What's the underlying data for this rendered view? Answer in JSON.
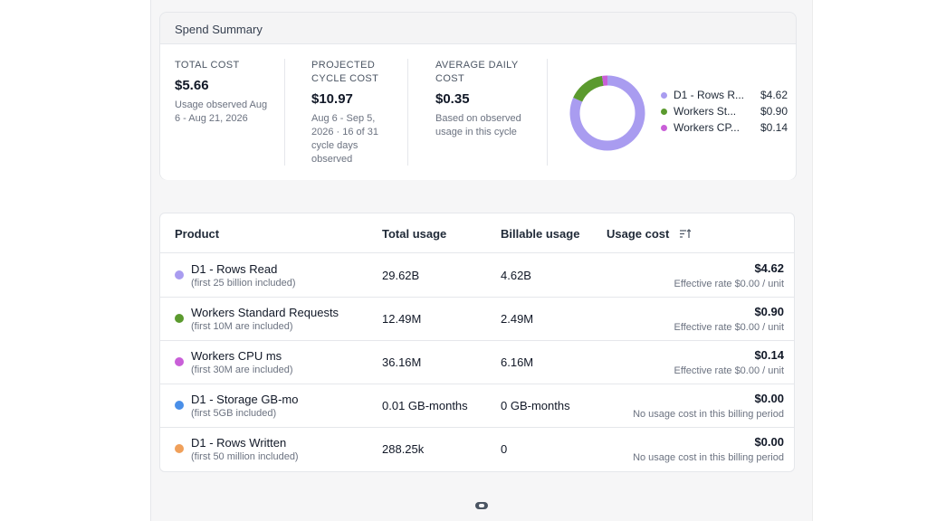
{
  "summary": {
    "title": "Spend Summary",
    "metrics": [
      {
        "label": "TOTAL COST",
        "value": "$5.66",
        "sub": "Usage observed Aug 6 - Aug 21, 2026"
      },
      {
        "label": "PROJECTED CYCLE COST",
        "value": "$10.97",
        "sub": "Aug 6 - Sep 5, 2026 · 16 of 31 cycle days observed"
      },
      {
        "label": "AVERAGE DAILY COST",
        "value": "$0.35",
        "sub": "Based on observed usage in this cycle"
      }
    ],
    "donut": {
      "segments": [
        {
          "name": "D1 - Rows Read",
          "value": 4.62,
          "color": "#a99cf0"
        },
        {
          "name": "Workers Standard Requests",
          "value": 0.9,
          "color": "#5b9a2e"
        },
        {
          "name": "Workers CPU ms",
          "value": 0.14,
          "color": "#c95fd8"
        }
      ]
    },
    "legend": [
      {
        "name": "D1 - Rows R...",
        "value": "$4.62",
        "color": "#a99cf0"
      },
      {
        "name": "Workers St...",
        "value": "$0.90",
        "color": "#5b9a2e"
      },
      {
        "name": "Workers CP...",
        "value": "$0.14",
        "color": "#c95fd8"
      }
    ]
  },
  "table": {
    "headers": {
      "product": "Product",
      "total_usage": "Total usage",
      "billable_usage": "Billable usage",
      "usage_cost": "Usage cost"
    },
    "sort_icon": "sort-descending-icon",
    "rows": [
      {
        "name": "D1 - Rows Read",
        "note": "(first 25 billion included)",
        "total": "29.62B",
        "billable": "4.62B",
        "cost": "$4.62",
        "cost_note": "Effective rate $0.00 / unit",
        "color": "#a99cf0"
      },
      {
        "name": "Workers Standard Requests",
        "note": "(first 10M are included)",
        "total": "12.49M",
        "billable": "2.49M",
        "cost": "$0.90",
        "cost_note": "Effective rate $0.00 / unit",
        "color": "#5b9a2e"
      },
      {
        "name": "Workers CPU ms",
        "note": "(first 30M are included)",
        "total": "36.16M",
        "billable": "6.16M",
        "cost": "$0.14",
        "cost_note": "Effective rate $0.00 / unit",
        "color": "#c95fd8"
      },
      {
        "name": "D1 - Storage GB-mo",
        "note": "(first 5GB included)",
        "total": "0.01 GB-months",
        "billable": "0 GB-months",
        "cost": "$0.00",
        "cost_note": "No usage cost in this billing period",
        "color": "#4a8fe8"
      },
      {
        "name": "D1 - Rows Written",
        "note": "(first 50 million included)",
        "total": "288.25k",
        "billable": "0",
        "cost": "$0.00",
        "cost_note": "No usage cost in this billing period",
        "color": "#f0a05a"
      }
    ]
  }
}
